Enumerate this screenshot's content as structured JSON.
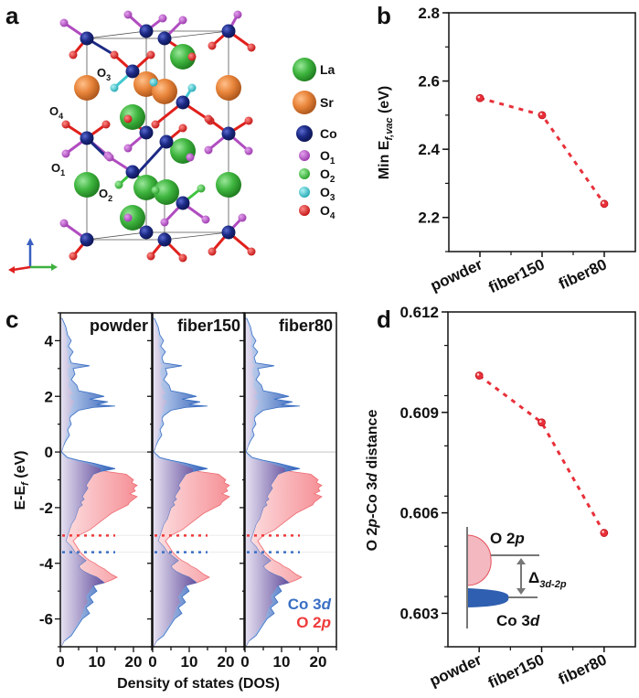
{
  "panels": {
    "a": {
      "label": "a",
      "site_labels": [
        {
          "text": "O",
          "sub": "3"
        },
        {
          "text": "O",
          "sub": "4"
        },
        {
          "text": "O",
          "sub": "1"
        },
        {
          "text": "O",
          "sub": "2"
        }
      ],
      "legend": [
        {
          "name": "La",
          "sub": "",
          "color": "#3fb63f",
          "kind": "large"
        },
        {
          "name": "Sr",
          "sub": "",
          "color": "#e8843a",
          "kind": "large"
        },
        {
          "name": "Co",
          "sub": "",
          "color": "#1c2a85",
          "kind": "medium"
        },
        {
          "name": "O",
          "sub": "1",
          "color": "#b04cc0",
          "kind": "small"
        },
        {
          "name": "O",
          "sub": "2",
          "color": "#3fc43f",
          "kind": "small"
        },
        {
          "name": "O",
          "sub": "3",
          "color": "#43c8d0",
          "kind": "small"
        },
        {
          "name": "O",
          "sub": "4",
          "color": "#e0201c",
          "kind": "small"
        }
      ],
      "axis_triad_icon": "xyz-axes-icon"
    },
    "b": {
      "label": "b"
    },
    "c": {
      "label": "c"
    },
    "d": {
      "label": "d"
    }
  },
  "chart_data": [
    {
      "id": "b",
      "type": "line",
      "title": "",
      "categories": [
        "powder",
        "fiber150",
        "fiber80"
      ],
      "series": [
        {
          "name": "Min E_f,vac",
          "values": [
            2.55,
            2.5,
            2.24
          ],
          "color": "#e8303a",
          "style": "dashed",
          "marker": "circle"
        }
      ],
      "xlabel": "",
      "ylabel": {
        "main": "Min E",
        "sub": "f,vac",
        "unit": " (eV)"
      },
      "ylim": [
        2.1,
        2.8
      ],
      "yticks": [
        2.2,
        2.4,
        2.6,
        2.8
      ],
      "ytick_labels": [
        "2.2",
        "2.4",
        "2.6",
        "2.8"
      ],
      "grid": false
    },
    {
      "id": "c",
      "type": "area",
      "title": "",
      "subpanels": [
        "powder",
        "fiber150",
        "fiber80"
      ],
      "xlabel": "Density of states (DOS)",
      "ylabel": {
        "main": "E-E",
        "sub": "f",
        "unit": " (eV)"
      },
      "xlim": [
        0,
        25
      ],
      "xticks": [
        0,
        10,
        20
      ],
      "xtick_labels": [
        "0",
        "10",
        "20"
      ],
      "ylim": [
        -7,
        5
      ],
      "yticks": [
        4,
        2,
        0,
        -2,
        -4,
        -6
      ],
      "ytick_labels": [
        "4",
        "2",
        "0",
        "-2",
        "-4",
        "-6"
      ],
      "fermi_level": 0,
      "band_centers": {
        "O 2p": -3.0,
        "Co 3d": -3.6
      },
      "legend": [
        {
          "name": "Co 3",
          "italic": "d",
          "color": "#3a6fc4"
        },
        {
          "name": "O 2",
          "italic": "p",
          "color": "#ee3a3a"
        }
      ],
      "legend_position": "bottom-right",
      "series_points": {
        "energy": [
          4.8,
          4.5,
          4.2,
          4.0,
          3.8,
          3.6,
          3.4,
          3.2,
          3.1,
          3.0,
          2.8,
          2.6,
          2.4,
          2.2,
          2.1,
          2.0,
          1.9,
          1.8,
          1.7,
          1.65,
          1.6,
          1.5,
          1.4,
          1.3,
          1.2,
          1.0,
          0.8,
          0.6,
          0.4,
          0.2,
          0.0,
          -0.2,
          -0.3,
          -0.4,
          -0.5,
          -0.6,
          -0.7,
          -0.8,
          -0.9,
          -1.0,
          -1.1,
          -1.2,
          -1.3,
          -1.4,
          -1.5,
          -1.6,
          -1.7,
          -1.8,
          -1.9,
          -2.0,
          -2.2,
          -2.4,
          -2.6,
          -2.8,
          -3.0,
          -3.2,
          -3.4,
          -3.6,
          -3.8,
          -3.9,
          -4.0,
          -4.1,
          -4.2,
          -4.3,
          -4.4,
          -4.5,
          -4.6,
          -4.7,
          -4.8,
          -5.0,
          -5.2,
          -5.4,
          -5.6,
          -5.8,
          -6.0,
          -6.2,
          -6.4,
          -6.6,
          -6.8,
          -7.0
        ],
        "Co 3d": [
          0.5,
          1.5,
          2.0,
          3.0,
          2.2,
          3.5,
          2.5,
          3.0,
          8.0,
          3.5,
          4.0,
          3.0,
          4.5,
          5.0,
          9.0,
          12.0,
          8.0,
          13.0,
          10.0,
          15.0,
          9.0,
          5.0,
          4.0,
          3.0,
          2.5,
          3.0,
          2.0,
          2.5,
          1.5,
          0.8,
          0.3,
          2.0,
          5.0,
          9.0,
          12.0,
          15.0,
          11.0,
          9.0,
          8.5,
          8.0,
          7.5,
          7.0,
          7.5,
          7.0,
          6.5,
          6.0,
          6.5,
          5.5,
          6.0,
          5.0,
          4.5,
          4.0,
          3.0,
          2.5,
          2.0,
          1.5,
          3.0,
          4.0,
          6.0,
          7.0,
          6.0,
          5.0,
          5.5,
          6.5,
          8.0,
          10.0,
          11.0,
          12.0,
          9.0,
          10.0,
          8.0,
          9.0,
          7.0,
          8.0,
          6.0,
          5.0,
          4.0,
          3.0,
          1.0,
          0.2
        ],
        "O 2p": [
          0.3,
          1.0,
          1.5,
          1.8,
          1.6,
          2.0,
          2.2,
          2.0,
          2.8,
          2.2,
          2.0,
          2.5,
          2.2,
          3.0,
          3.5,
          2.5,
          3.0,
          4.0,
          3.2,
          3.5,
          2.8,
          3.0,
          2.5,
          2.2,
          2.5,
          2.0,
          1.8,
          1.5,
          1.2,
          0.8,
          0.2,
          1.0,
          4.0,
          7.0,
          9.0,
          11.0,
          12.5,
          18.0,
          19.0,
          20.0,
          19.5,
          21.0,
          20.0,
          20.5,
          19.0,
          21.0,
          20.0,
          19.0,
          18.5,
          17.0,
          14.0,
          12.0,
          10.0,
          8.0,
          5.0,
          3.5,
          4.5,
          5.5,
          7.0,
          8.0,
          9.5,
          10.5,
          12.0,
          13.0,
          14.0,
          15.5,
          14.0,
          12.0,
          9.0,
          8.0,
          7.0,
          7.5,
          6.5,
          6.0,
          5.5,
          4.5,
          3.5,
          2.5,
          1.0,
          0.2
        ]
      }
    },
    {
      "id": "d",
      "type": "line",
      "title": "",
      "categories": [
        "powder",
        "fiber150",
        "fiber80"
      ],
      "series": [
        {
          "name": "O 2p-Co 3d distance",
          "values": [
            0.6101,
            0.6087,
            0.6054
          ],
          "color": "#e8303a",
          "style": "dashed",
          "marker": "circle"
        }
      ],
      "xlabel": "",
      "ylabel": {
        "parts": [
          "O 2",
          "p",
          "-Co 3",
          "d",
          " distance"
        ]
      },
      "ylim": [
        0.602,
        0.612
      ],
      "yticks": [
        0.603,
        0.606,
        0.609,
        0.612
      ],
      "ytick_labels": [
        "0.603",
        "0.606",
        "0.609",
        "0.612"
      ],
      "grid": false,
      "inset": {
        "top_label": {
          "text": "O 2",
          "italic": "p"
        },
        "bottom_label": {
          "text": "Co 3",
          "italic": "d"
        },
        "gap_label": {
          "text": "Δ",
          "sub": "3d-2p"
        },
        "colors": {
          "o2p_fill": "#f4b8c0",
          "o2p_stroke": "#e6505a",
          "co3d_fill": "#2f5fb0",
          "axis": "#777777"
        }
      }
    }
  ]
}
